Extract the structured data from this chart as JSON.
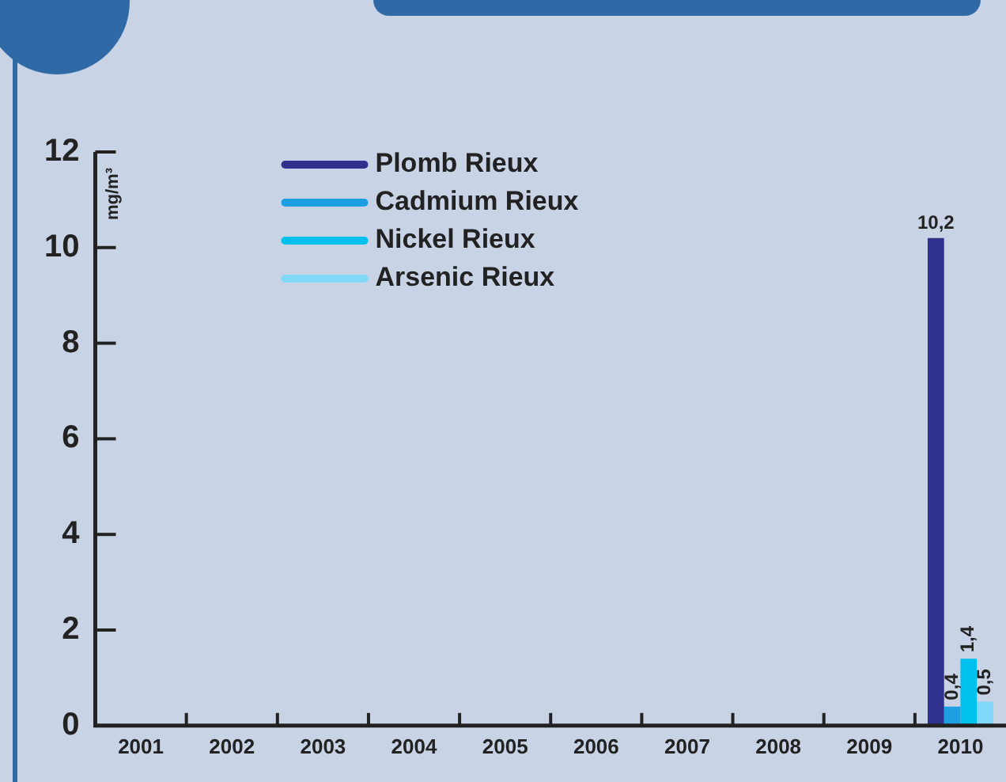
{
  "chart_data": {
    "type": "bar",
    "ylabel": "mg/m³",
    "categories": [
      "2001",
      "2002",
      "2003",
      "2004",
      "2005",
      "2006",
      "2007",
      "2008",
      "2009",
      "2010"
    ],
    "series": [
      {
        "name": "Plomb Rieux",
        "color": "#30308e",
        "values": [
          null,
          null,
          null,
          null,
          null,
          null,
          null,
          null,
          null,
          10.2
        ],
        "value_labels": [
          null,
          null,
          null,
          null,
          null,
          null,
          null,
          null,
          null,
          "10,2"
        ]
      },
      {
        "name": "Cadmium Rieux",
        "color": "#1e9fe2",
        "values": [
          null,
          null,
          null,
          null,
          null,
          null,
          null,
          null,
          null,
          0.4
        ],
        "value_labels": [
          null,
          null,
          null,
          null,
          null,
          null,
          null,
          null,
          null,
          "0,4"
        ]
      },
      {
        "name": "Nickel Rieux",
        "color": "#00c0ee",
        "values": [
          null,
          null,
          null,
          null,
          null,
          null,
          null,
          null,
          null,
          1.4
        ],
        "value_labels": [
          null,
          null,
          null,
          null,
          null,
          null,
          null,
          null,
          null,
          "1,4"
        ]
      },
      {
        "name": "Arsenic Rieux",
        "color": "#80d8f8",
        "values": [
          null,
          null,
          null,
          null,
          null,
          null,
          null,
          null,
          null,
          0.5
        ],
        "value_labels": [
          null,
          null,
          null,
          null,
          null,
          null,
          null,
          null,
          null,
          "0,5"
        ]
      }
    ],
    "ylim": [
      0,
      12
    ],
    "yticks": [
      0,
      2,
      4,
      6,
      8,
      10,
      12
    ],
    "grid": false,
    "legend": "top left"
  }
}
